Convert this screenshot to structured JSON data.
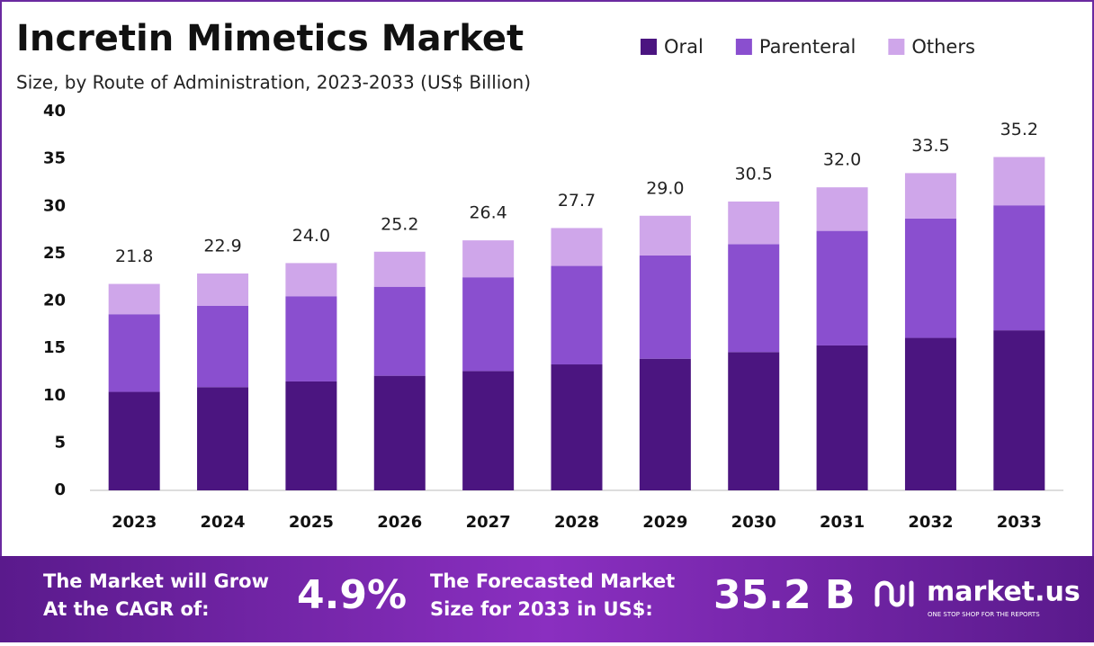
{
  "chart_data": {
    "type": "stacked_bar",
    "title": "Incretin Mimetics Market",
    "subtitle": "Size, by Route of Administration, 2023-2033 (US$ Billion)",
    "categories": [
      "2023",
      "2024",
      "2025",
      "2026",
      "2027",
      "2028",
      "2029",
      "2030",
      "2031",
      "2032",
      "2033"
    ],
    "series": [
      {
        "name": "Oral",
        "color": "#4b1580",
        "values": [
          10.4,
          10.9,
          11.5,
          12.1,
          12.6,
          13.3,
          13.9,
          14.6,
          15.3,
          16.1,
          16.9
        ]
      },
      {
        "name": "Parenteral",
        "color": "#8a4fcf",
        "values": [
          8.2,
          8.6,
          9.0,
          9.4,
          9.9,
          10.4,
          10.9,
          11.4,
          12.1,
          12.6,
          13.2
        ]
      },
      {
        "name": "Others",
        "color": "#cfa6ea",
        "values": [
          3.2,
          3.4,
          3.5,
          3.7,
          3.9,
          4.0,
          4.2,
          4.5,
          4.6,
          4.8,
          5.1
        ]
      }
    ],
    "totals": [
      21.8,
      22.9,
      24,
      25.2,
      26.4,
      27.7,
      29,
      30.5,
      32,
      33.5,
      35.2
    ],
    "total_labels": [
      "21.8",
      "22.9",
      "24.0",
      "25.2",
      "26.4",
      "27.7",
      "29.0",
      "30.5",
      "32.0",
      "33.5",
      "35.2"
    ],
    "ylim": [
      0,
      40
    ],
    "yticks": [
      0,
      5,
      10,
      15,
      20,
      25,
      30,
      35,
      40
    ],
    "grid": false
  },
  "footer": {
    "cagr_text": [
      "The Market will Grow",
      "At the CAGR of:"
    ],
    "cagr": "4.9%",
    "forecast_text": [
      "The Forecasted Market",
      "Size for 2033 in US$:"
    ],
    "forecast": "35.2 B",
    "brand": "market.us",
    "tagline": "ONE STOP SHOP FOR THE REPORTS"
  }
}
